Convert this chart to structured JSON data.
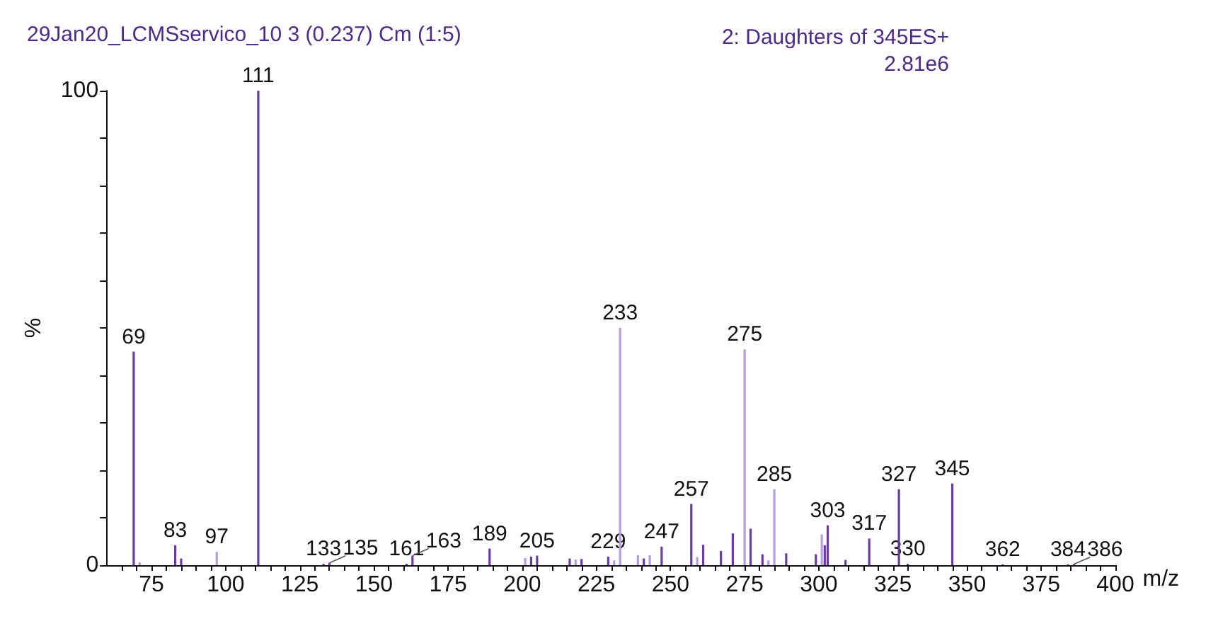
{
  "chart_data": {
    "type": "bar",
    "title": "29Jan20_LCMSservico_10 3 (0.237) Cm (1:5)",
    "subtitle": "2: Daughters of 345ES+\n2.81e6",
    "xlabel": "m/z",
    "ylabel": "%",
    "x": [
      69,
      71,
      83,
      85,
      97,
      111,
      133,
      135,
      161,
      163,
      189,
      201,
      203,
      205,
      216,
      218,
      220,
      229,
      231,
      233,
      239,
      241,
      243,
      247,
      257,
      259,
      261,
      267,
      271,
      275,
      277,
      281,
      283,
      285,
      289,
      299,
      301,
      302,
      303,
      309,
      317,
      327,
      330,
      345,
      362,
      384,
      386
    ],
    "values": [
      45,
      0.6,
      4.2,
      1.4,
      2.8,
      100,
      0.3,
      0.5,
      0.3,
      2.0,
      3.5,
      1.5,
      1.8,
      2.0,
      1.4,
      1.2,
      1.3,
      1.8,
      1.0,
      50,
      2.1,
      1.4,
      2.1,
      3.9,
      12.9,
      1.7,
      4.3,
      3.0,
      6.7,
      45.5,
      7.7,
      2.3,
      1.0,
      16,
      2.5,
      2.3,
      6.5,
      4.2,
      8.4,
      1.1,
      5.6,
      16,
      0.3,
      17.2,
      0.2,
      0.2,
      0.2
    ],
    "colors": [
      "#6a3aa8",
      "#b59ee0",
      "#6a3aa8",
      "#6a3aa8",
      "#b59ee0",
      "#6a3aa8",
      "#6a3aa8",
      "#6a3aa8",
      "#6a3aa8",
      "#6a3aa8",
      "#6a3aa8",
      "#b59ee0",
      "#6a3aa8",
      "#6a3aa8",
      "#6a3aa8",
      "#b59ee0",
      "#6a3aa8",
      "#6a3aa8",
      "#b59ee0",
      "#b59ee0",
      "#b59ee0",
      "#6a3aa8",
      "#b59ee0",
      "#6a3aa8",
      "#6a3aa8",
      "#b59ee0",
      "#6a3aa8",
      "#6a3aa8",
      "#6a3aa8",
      "#b59ee0",
      "#6a3aa8",
      "#6a3aa8",
      "#b59ee0",
      "#b59ee0",
      "#6a3aa8",
      "#6a3aa8",
      "#b59ee0",
      "#6a3aa8",
      "#6a3aa8",
      "#6a3aa8",
      "#6a3aa8",
      "#6a3aa8",
      "#6a3aa8",
      "#6a3aa8",
      "#6a3aa8",
      "#6a3aa8",
      "#6a3aa8"
    ],
    "annotations": [
      {
        "text": "69",
        "x": 69,
        "y": 45
      },
      {
        "text": "83",
        "x": 83,
        "y": 4.2
      },
      {
        "text": "97",
        "x": 97,
        "y": 2.8
      },
      {
        "text": "111",
        "x": 111,
        "y": 100
      },
      {
        "text": "133",
        "x": 133,
        "y": 0.3
      },
      {
        "text": "135",
        "x": 135,
        "y": 0.5
      },
      {
        "text": "161",
        "x": 161,
        "y": 0.3
      },
      {
        "text": "163",
        "x": 163,
        "y": 2.0
      },
      {
        "text": "189",
        "x": 189,
        "y": 3.5
      },
      {
        "text": "205",
        "x": 205,
        "y": 2.0
      },
      {
        "text": "229",
        "x": 229,
        "y": 1.8
      },
      {
        "text": "233",
        "x": 233,
        "y": 50
      },
      {
        "text": "247",
        "x": 247,
        "y": 3.9
      },
      {
        "text": "257",
        "x": 257,
        "y": 12.9
      },
      {
        "text": "275",
        "x": 275,
        "y": 45.5
      },
      {
        "text": "285",
        "x": 285,
        "y": 16
      },
      {
        "text": "303",
        "x": 303,
        "y": 8.4
      },
      {
        "text": "317",
        "x": 317,
        "y": 5.6
      },
      {
        "text": "327",
        "x": 327,
        "y": 16
      },
      {
        "text": "330",
        "x": 330,
        "y": 0.3
      },
      {
        "text": "345",
        "x": 345,
        "y": 17.2
      },
      {
        "text": "362",
        "x": 362,
        "y": 0.2
      },
      {
        "text": "384",
        "x": 384,
        "y": 0.2
      },
      {
        "text": "386",
        "x": 386,
        "y": 0.2
      }
    ],
    "xlim": [
      60,
      400
    ],
    "xticks": [
      {
        "value": 65,
        "label": null
      },
      {
        "value": 70,
        "label": null
      },
      75,
      {
        "value": 80,
        "label": null
      },
      {
        "value": 85,
        "label": null
      },
      {
        "value": 90,
        "label": null
      },
      {
        "value": 95,
        "label": null
      },
      100,
      {
        "value": 105,
        "label": null
      },
      {
        "value": 110,
        "label": null
      },
      {
        "value": 115,
        "label": null
      },
      {
        "value": 120,
        "label": null
      },
      125,
      {
        "value": 130,
        "label": null
      },
      {
        "value": 135,
        "label": null
      },
      {
        "value": 140,
        "label": null
      },
      {
        "value": 145,
        "label": null
      },
      150,
      {
        "value": 155,
        "label": null
      },
      {
        "value": 160,
        "label": null
      },
      {
        "value": 165,
        "label": null
      },
      {
        "value": 170,
        "label": null
      },
      175,
      {
        "value": 180,
        "label": null
      },
      {
        "value": 185,
        "label": null
      },
      {
        "value": 190,
        "label": null
      },
      {
        "value": 195,
        "label": null
      },
      200,
      {
        "value": 205,
        "label": null
      },
      {
        "value": 210,
        "label": null
      },
      {
        "value": 215,
        "label": null
      },
      {
        "value": 220,
        "label": null
      },
      225,
      {
        "value": 230,
        "label": null
      },
      {
        "value": 235,
        "label": null
      },
      {
        "value": 240,
        "label": null
      },
      {
        "value": 245,
        "label": null
      },
      250,
      {
        "value": 255,
        "label": null
      },
      {
        "value": 260,
        "label": null
      },
      {
        "value": 265,
        "label": null
      },
      {
        "value": 270,
        "label": null
      },
      275,
      {
        "value": 280,
        "label": null
      },
      {
        "value": 285,
        "label": null
      },
      {
        "value": 290,
        "label": null
      },
      {
        "value": 295,
        "label": null
      },
      300,
      {
        "value": 305,
        "label": null
      },
      {
        "value": 310,
        "label": null
      },
      {
        "value": 315,
        "label": null
      },
      {
        "value": 320,
        "label": null
      },
      325,
      {
        "value": 330,
        "label": null
      },
      {
        "value": 335,
        "label": null
      },
      {
        "value": 340,
        "label": null
      },
      {
        "value": 345,
        "label": null
      },
      350,
      {
        "value": 355,
        "label": null
      },
      {
        "value": 360,
        "label": null
      },
      {
        "value": 365,
        "label": null
      },
      {
        "value": 370,
        "label": null
      },
      375,
      {
        "value": 380,
        "label": null
      },
      {
        "value": 385,
        "label": null
      },
      {
        "value": 390,
        "label": null
      },
      {
        "value": 395,
        "label": null
      },
      400
    ],
    "ylim": [
      0,
      100
    ],
    "yticks": [
      0,
      {
        "value": 10,
        "label": null
      },
      {
        "value": 20,
        "label": null
      },
      {
        "value": 30,
        "label": null
      },
      {
        "value": 40,
        "label": null
      },
      {
        "value": 50,
        "label": null
      },
      {
        "value": 60,
        "label": null
      },
      {
        "value": 70,
        "label": null
      },
      {
        "value": 80,
        "label": null
      },
      {
        "value": 90,
        "label": null
      },
      100
    ],
    "grid": false
  }
}
